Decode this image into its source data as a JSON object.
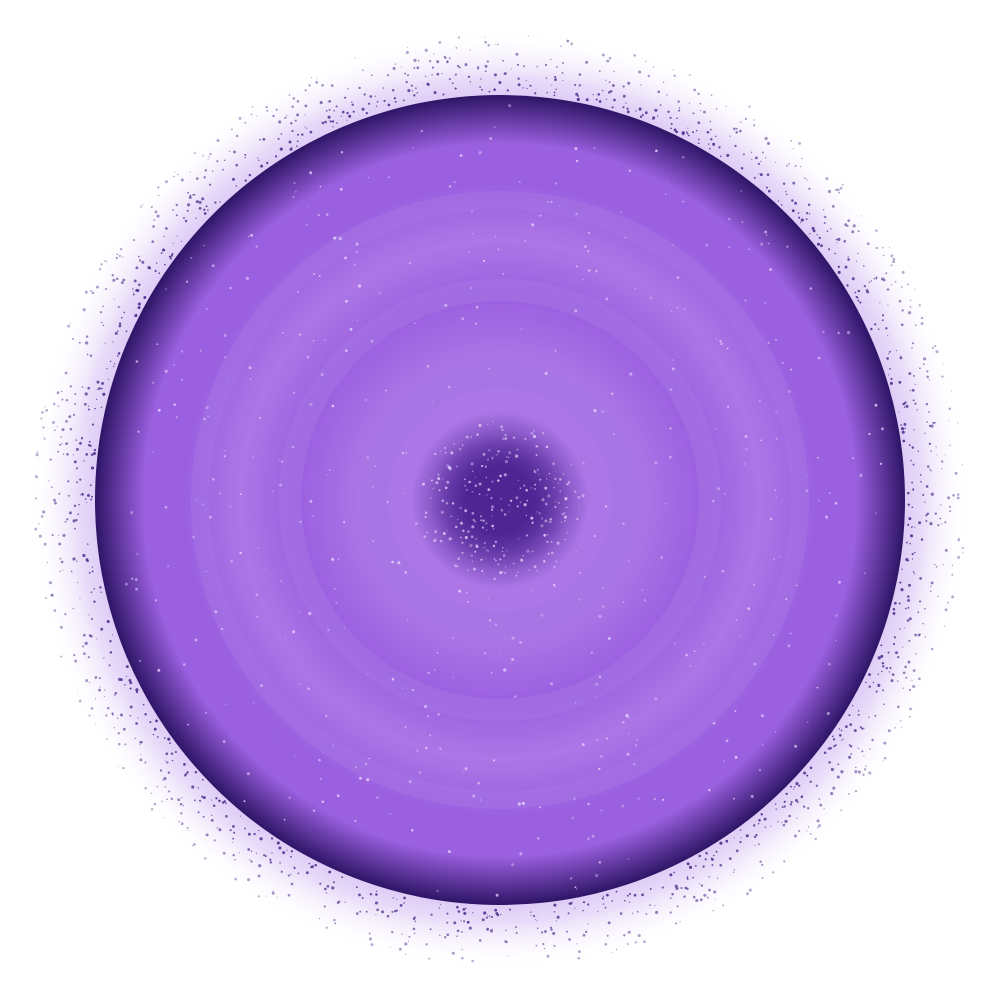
{
  "colors": {
    "background": "#ffffff",
    "halo_inner": "#cdb2f2",
    "halo_outer": "#ffffff",
    "speck": "#4a2a8a",
    "orb_rim": "#2e1566",
    "orb_body": "#9b60e0",
    "orb_light": "#ac76e6",
    "orb_ring": "#a574e3",
    "core_dark": "#4e2593",
    "sparkle": "#e6d6ff"
  },
  "icons": {
    "subject": "glowing-purple-sphere"
  }
}
